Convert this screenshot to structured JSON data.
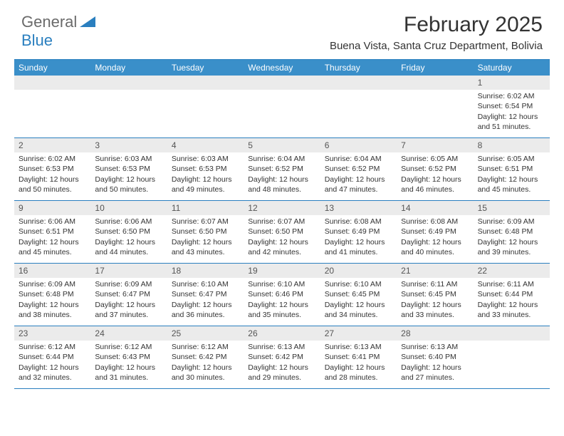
{
  "logo": {
    "general": "General",
    "blue": "Blue"
  },
  "title": "February 2025",
  "location": "Buena Vista, Santa Cruz Department, Bolivia",
  "colors": {
    "header_bg": "#3a8fc9",
    "header_text": "#ffffff",
    "border": "#2a7fbf",
    "daynum_bg": "#ebebeb",
    "body_text": "#333333",
    "logo_gray": "#6a6a6a",
    "logo_blue": "#2a7fbf"
  },
  "day_labels": [
    "Sunday",
    "Monday",
    "Tuesday",
    "Wednesday",
    "Thursday",
    "Friday",
    "Saturday"
  ],
  "weeks": [
    [
      {
        "n": "",
        "sunrise": "",
        "sunset": "",
        "daylight": ""
      },
      {
        "n": "",
        "sunrise": "",
        "sunset": "",
        "daylight": ""
      },
      {
        "n": "",
        "sunrise": "",
        "sunset": "",
        "daylight": ""
      },
      {
        "n": "",
        "sunrise": "",
        "sunset": "",
        "daylight": ""
      },
      {
        "n": "",
        "sunrise": "",
        "sunset": "",
        "daylight": ""
      },
      {
        "n": "",
        "sunrise": "",
        "sunset": "",
        "daylight": ""
      },
      {
        "n": "1",
        "sunrise": "Sunrise: 6:02 AM",
        "sunset": "Sunset: 6:54 PM",
        "daylight": "Daylight: 12 hours and 51 minutes."
      }
    ],
    [
      {
        "n": "2",
        "sunrise": "Sunrise: 6:02 AM",
        "sunset": "Sunset: 6:53 PM",
        "daylight": "Daylight: 12 hours and 50 minutes."
      },
      {
        "n": "3",
        "sunrise": "Sunrise: 6:03 AM",
        "sunset": "Sunset: 6:53 PM",
        "daylight": "Daylight: 12 hours and 50 minutes."
      },
      {
        "n": "4",
        "sunrise": "Sunrise: 6:03 AM",
        "sunset": "Sunset: 6:53 PM",
        "daylight": "Daylight: 12 hours and 49 minutes."
      },
      {
        "n": "5",
        "sunrise": "Sunrise: 6:04 AM",
        "sunset": "Sunset: 6:52 PM",
        "daylight": "Daylight: 12 hours and 48 minutes."
      },
      {
        "n": "6",
        "sunrise": "Sunrise: 6:04 AM",
        "sunset": "Sunset: 6:52 PM",
        "daylight": "Daylight: 12 hours and 47 minutes."
      },
      {
        "n": "7",
        "sunrise": "Sunrise: 6:05 AM",
        "sunset": "Sunset: 6:52 PM",
        "daylight": "Daylight: 12 hours and 46 minutes."
      },
      {
        "n": "8",
        "sunrise": "Sunrise: 6:05 AM",
        "sunset": "Sunset: 6:51 PM",
        "daylight": "Daylight: 12 hours and 45 minutes."
      }
    ],
    [
      {
        "n": "9",
        "sunrise": "Sunrise: 6:06 AM",
        "sunset": "Sunset: 6:51 PM",
        "daylight": "Daylight: 12 hours and 45 minutes."
      },
      {
        "n": "10",
        "sunrise": "Sunrise: 6:06 AM",
        "sunset": "Sunset: 6:50 PM",
        "daylight": "Daylight: 12 hours and 44 minutes."
      },
      {
        "n": "11",
        "sunrise": "Sunrise: 6:07 AM",
        "sunset": "Sunset: 6:50 PM",
        "daylight": "Daylight: 12 hours and 43 minutes."
      },
      {
        "n": "12",
        "sunrise": "Sunrise: 6:07 AM",
        "sunset": "Sunset: 6:50 PM",
        "daylight": "Daylight: 12 hours and 42 minutes."
      },
      {
        "n": "13",
        "sunrise": "Sunrise: 6:08 AM",
        "sunset": "Sunset: 6:49 PM",
        "daylight": "Daylight: 12 hours and 41 minutes."
      },
      {
        "n": "14",
        "sunrise": "Sunrise: 6:08 AM",
        "sunset": "Sunset: 6:49 PM",
        "daylight": "Daylight: 12 hours and 40 minutes."
      },
      {
        "n": "15",
        "sunrise": "Sunrise: 6:09 AM",
        "sunset": "Sunset: 6:48 PM",
        "daylight": "Daylight: 12 hours and 39 minutes."
      }
    ],
    [
      {
        "n": "16",
        "sunrise": "Sunrise: 6:09 AM",
        "sunset": "Sunset: 6:48 PM",
        "daylight": "Daylight: 12 hours and 38 minutes."
      },
      {
        "n": "17",
        "sunrise": "Sunrise: 6:09 AM",
        "sunset": "Sunset: 6:47 PM",
        "daylight": "Daylight: 12 hours and 37 minutes."
      },
      {
        "n": "18",
        "sunrise": "Sunrise: 6:10 AM",
        "sunset": "Sunset: 6:47 PM",
        "daylight": "Daylight: 12 hours and 36 minutes."
      },
      {
        "n": "19",
        "sunrise": "Sunrise: 6:10 AM",
        "sunset": "Sunset: 6:46 PM",
        "daylight": "Daylight: 12 hours and 35 minutes."
      },
      {
        "n": "20",
        "sunrise": "Sunrise: 6:10 AM",
        "sunset": "Sunset: 6:45 PM",
        "daylight": "Daylight: 12 hours and 34 minutes."
      },
      {
        "n": "21",
        "sunrise": "Sunrise: 6:11 AM",
        "sunset": "Sunset: 6:45 PM",
        "daylight": "Daylight: 12 hours and 33 minutes."
      },
      {
        "n": "22",
        "sunrise": "Sunrise: 6:11 AM",
        "sunset": "Sunset: 6:44 PM",
        "daylight": "Daylight: 12 hours and 33 minutes."
      }
    ],
    [
      {
        "n": "23",
        "sunrise": "Sunrise: 6:12 AM",
        "sunset": "Sunset: 6:44 PM",
        "daylight": "Daylight: 12 hours and 32 minutes."
      },
      {
        "n": "24",
        "sunrise": "Sunrise: 6:12 AM",
        "sunset": "Sunset: 6:43 PM",
        "daylight": "Daylight: 12 hours and 31 minutes."
      },
      {
        "n": "25",
        "sunrise": "Sunrise: 6:12 AM",
        "sunset": "Sunset: 6:42 PM",
        "daylight": "Daylight: 12 hours and 30 minutes."
      },
      {
        "n": "26",
        "sunrise": "Sunrise: 6:13 AM",
        "sunset": "Sunset: 6:42 PM",
        "daylight": "Daylight: 12 hours and 29 minutes."
      },
      {
        "n": "27",
        "sunrise": "Sunrise: 6:13 AM",
        "sunset": "Sunset: 6:41 PM",
        "daylight": "Daylight: 12 hours and 28 minutes."
      },
      {
        "n": "28",
        "sunrise": "Sunrise: 6:13 AM",
        "sunset": "Sunset: 6:40 PM",
        "daylight": "Daylight: 12 hours and 27 minutes."
      },
      {
        "n": "",
        "sunrise": "",
        "sunset": "",
        "daylight": ""
      }
    ]
  ]
}
